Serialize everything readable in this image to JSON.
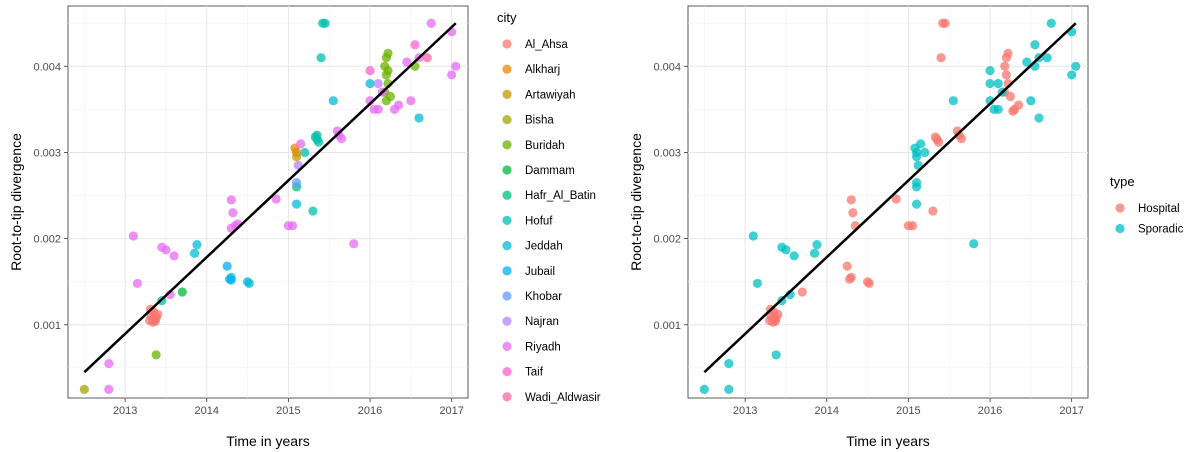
{
  "chart_data": [
    {
      "type": "scatter",
      "xlabel": "Time in years",
      "ylabel": "Root-to-tip divergence",
      "xlim": [
        2012.3,
        2017.2
      ],
      "ylim": [
        0.00015,
        0.0047
      ],
      "xticks": [
        2013,
        2014,
        2015,
        2016,
        2017
      ],
      "yticks": [
        0.001,
        0.002,
        0.003,
        0.004
      ],
      "ytick_labels": [
        "0.001",
        "0.002",
        "0.003",
        "0.004"
      ],
      "grid": true,
      "legend_title": "city",
      "legend_position": "right",
      "trend_line": {
        "x": [
          2012.5,
          2017.05
        ],
        "y": [
          0.00045,
          0.0045
        ],
        "color": "#000000"
      },
      "series": [
        {
          "name": "Al_Ahsa",
          "color": "#F8766D",
          "points": [
            [
              2013.3,
              0.00105
            ],
            [
              2013.32,
              0.0011
            ],
            [
              2013.35,
              0.00115
            ],
            [
              2013.38,
              0.00108
            ],
            [
              2013.34,
              0.00103
            ],
            [
              2013.4,
              0.00112
            ],
            [
              2013.36,
              0.00106
            ],
            [
              2013.31,
              0.00118
            ],
            [
              2013.37,
              0.00104
            ]
          ]
        },
        {
          "name": "Alkharj",
          "color": "#E58700",
          "points": [
            [
              2015.1,
              0.003
            ],
            [
              2015.08,
              0.00305
            ]
          ]
        },
        {
          "name": "Artawiyah",
          "color": "#C99800",
          "points": [
            [
              2015.1,
              0.00295
            ]
          ]
        },
        {
          "name": "Bisha",
          "color": "#A3A500",
          "points": [
            [
              2012.5,
              0.00025
            ]
          ]
        },
        {
          "name": "Buridah",
          "color": "#6BB100",
          "points": [
            [
              2013.38,
              0.00065
            ],
            [
              2016.2,
              0.0041
            ],
            [
              2016.22,
              0.00415
            ],
            [
              2016.18,
              0.004
            ],
            [
              2016.2,
              0.0039
            ],
            [
              2016.22,
              0.0038
            ],
            [
              2016.18,
              0.0037
            ],
            [
              2016.25,
              0.00365
            ],
            [
              2016.2,
              0.0036
            ],
            [
              2016.55,
              0.004
            ],
            [
              2016.22,
              0.00395
            ]
          ]
        },
        {
          "name": "Dammam",
          "color": "#00BA38",
          "points": [
            [
              2013.7,
              0.00138
            ]
          ]
        },
        {
          "name": "Hafr_Al_Batin",
          "color": "#00BF7D",
          "points": [
            [
              2015.1,
              0.0026
            ],
            [
              2015.35,
              0.0032
            ]
          ]
        },
        {
          "name": "Hofuf",
          "color": "#00C0AF",
          "points": [
            [
              2013.45,
              0.00128
            ],
            [
              2015.35,
              0.00315
            ],
            [
              2015.37,
              0.00312
            ],
            [
              2015.33,
              0.00318
            ],
            [
              2015.3,
              0.00232
            ],
            [
              2015.42,
              0.0045
            ],
            [
              2015.45,
              0.0045
            ],
            [
              2015.4,
              0.0041
            ],
            [
              2015.2,
              0.003
            ]
          ]
        },
        {
          "name": "Jeddah",
          "color": "#00BCD8",
          "points": [
            [
              2013.85,
              0.00183
            ],
            [
              2013.88,
              0.00193
            ],
            [
              2014.3,
              0.00155
            ],
            [
              2014.28,
              0.00153
            ],
            [
              2014.5,
              0.0015
            ],
            [
              2014.52,
              0.00148
            ],
            [
              2015.1,
              0.0024
            ],
            [
              2015.55,
              0.0036
            ],
            [
              2016.0,
              0.0038
            ],
            [
              2016.6,
              0.0034
            ]
          ]
        },
        {
          "name": "Jubail",
          "color": "#00B0F6",
          "points": [
            [
              2014.25,
              0.00168
            ],
            [
              2014.3,
              0.00152
            ]
          ]
        },
        {
          "name": "Khobar",
          "color": "#619CFF",
          "points": [
            [
              2015.1,
              0.00265
            ]
          ]
        },
        {
          "name": "Najran",
          "color": "#B983FF",
          "points": [
            [
              2015.12,
              0.00285
            ],
            [
              2016.1,
              0.0038
            ]
          ]
        },
        {
          "name": "Riyadh",
          "color": "#E76BF3",
          "points": [
            [
              2012.8,
              0.00055
            ],
            [
              2012.8,
              0.00025
            ],
            [
              2013.15,
              0.00148
            ],
            [
              2013.1,
              0.00203
            ],
            [
              2013.45,
              0.0019
            ],
            [
              2013.5,
              0.00187
            ],
            [
              2013.6,
              0.0018
            ],
            [
              2013.55,
              0.00135
            ],
            [
              2014.3,
              0.00245
            ],
            [
              2014.32,
              0.0023
            ],
            [
              2014.35,
              0.00215
            ],
            [
              2014.38,
              0.00217
            ],
            [
              2014.3,
              0.00212
            ],
            [
              2014.85,
              0.00246
            ],
            [
              2015.0,
              0.00215
            ],
            [
              2015.05,
              0.00215
            ],
            [
              2015.15,
              0.0031
            ],
            [
              2015.6,
              0.00325
            ],
            [
              2015.62,
              0.0032
            ],
            [
              2015.65,
              0.00316
            ],
            [
              2015.8,
              0.00194
            ],
            [
              2016.0,
              0.0036
            ],
            [
              2016.05,
              0.0035
            ],
            [
              2016.15,
              0.0037
            ],
            [
              2016.1,
              0.0035
            ],
            [
              2016.3,
              0.0035
            ],
            [
              2016.35,
              0.00355
            ],
            [
              2016.5,
              0.0036
            ],
            [
              2016.6,
              0.0041
            ],
            [
              2016.75,
              0.0045
            ],
            [
              2017.0,
              0.0044
            ],
            [
              2017.0,
              0.0039
            ],
            [
              2017.05,
              0.004
            ],
            [
              2016.45,
              0.00405
            ]
          ]
        },
        {
          "name": "Taif",
          "color": "#FD61D1",
          "points": [
            [
              2016.55,
              0.00425
            ],
            [
              2016.0,
              0.00395
            ]
          ]
        },
        {
          "name": "Wadi_Aldwasir",
          "color": "#FF67A4",
          "points": [
            [
              2016.7,
              0.0041
            ]
          ]
        }
      ]
    },
    {
      "type": "scatter",
      "xlabel": "Time in years",
      "ylabel": "Root-to-tip divergence",
      "xlim": [
        2012.3,
        2017.2
      ],
      "ylim": [
        0.00015,
        0.0047
      ],
      "xticks": [
        2013,
        2014,
        2015,
        2016,
        2017
      ],
      "yticks": [
        0.001,
        0.002,
        0.003,
        0.004
      ],
      "ytick_labels": [
        "0.001",
        "0.002",
        "0.003",
        "0.004"
      ],
      "grid": true,
      "legend_title": "type",
      "legend_position": "right",
      "trend_line": {
        "x": [
          2012.5,
          2017.05
        ],
        "y": [
          0.00045,
          0.0045
        ],
        "color": "#000000"
      },
      "series": [
        {
          "name": "Hospital",
          "color": "#F8766D",
          "points": [
            [
              2013.3,
              0.00105
            ],
            [
              2013.32,
              0.0011
            ],
            [
              2013.35,
              0.00115
            ],
            [
              2013.38,
              0.00108
            ],
            [
              2013.34,
              0.00103
            ],
            [
              2013.4,
              0.00112
            ],
            [
              2013.36,
              0.00106
            ],
            [
              2013.31,
              0.00118
            ],
            [
              2013.37,
              0.00104
            ],
            [
              2013.7,
              0.00138
            ],
            [
              2014.3,
              0.00245
            ],
            [
              2014.32,
              0.0023
            ],
            [
              2014.35,
              0.00215
            ],
            [
              2014.25,
              0.00168
            ],
            [
              2014.3,
              0.00155
            ],
            [
              2014.28,
              0.00153
            ],
            [
              2014.5,
              0.0015
            ],
            [
              2014.52,
              0.00148
            ],
            [
              2014.85,
              0.00246
            ],
            [
              2015.0,
              0.00215
            ],
            [
              2015.05,
              0.00215
            ],
            [
              2015.3,
              0.00232
            ],
            [
              2015.35,
              0.00315
            ],
            [
              2015.37,
              0.00312
            ],
            [
              2015.33,
              0.00318
            ],
            [
              2015.42,
              0.0045
            ],
            [
              2015.45,
              0.0045
            ],
            [
              2015.4,
              0.0041
            ],
            [
              2015.6,
              0.00325
            ],
            [
              2015.62,
              0.0032
            ],
            [
              2015.65,
              0.00316
            ],
            [
              2016.2,
              0.0041
            ],
            [
              2016.22,
              0.00415
            ],
            [
              2016.18,
              0.004
            ],
            [
              2016.2,
              0.0039
            ],
            [
              2016.22,
              0.0038
            ],
            [
              2016.18,
              0.0037
            ],
            [
              2016.25,
              0.00365
            ],
            [
              2016.3,
              0.0035
            ],
            [
              2016.35,
              0.00355
            ],
            [
              2016.28,
              0.00348
            ]
          ]
        },
        {
          "name": "Sporadic",
          "color": "#00BFC4",
          "points": [
            [
              2012.5,
              0.00025
            ],
            [
              2012.8,
              0.00055
            ],
            [
              2012.8,
              0.00025
            ],
            [
              2013.15,
              0.00148
            ],
            [
              2013.1,
              0.00203
            ],
            [
              2013.38,
              0.00065
            ],
            [
              2013.45,
              0.00128
            ],
            [
              2013.45,
              0.0019
            ],
            [
              2013.5,
              0.00187
            ],
            [
              2013.6,
              0.0018
            ],
            [
              2013.55,
              0.00135
            ],
            [
              2013.85,
              0.00183
            ],
            [
              2013.88,
              0.00193
            ],
            [
              2015.1,
              0.0024
            ],
            [
              2015.1,
              0.0026
            ],
            [
              2015.1,
              0.00265
            ],
            [
              2015.12,
              0.00285
            ],
            [
              2015.1,
              0.003
            ],
            [
              2015.08,
              0.00305
            ],
            [
              2015.1,
              0.00295
            ],
            [
              2015.15,
              0.0031
            ],
            [
              2015.2,
              0.003
            ],
            [
              2015.55,
              0.0036
            ],
            [
              2015.8,
              0.00194
            ],
            [
              2016.0,
              0.0038
            ],
            [
              2016.0,
              0.0036
            ],
            [
              2016.05,
              0.0035
            ],
            [
              2016.1,
              0.0038
            ],
            [
              2016.15,
              0.0037
            ],
            [
              2016.1,
              0.0035
            ],
            [
              2016.0,
              0.00395
            ],
            [
              2016.45,
              0.00405
            ],
            [
              2016.5,
              0.0036
            ],
            [
              2016.55,
              0.00425
            ],
            [
              2016.55,
              0.004
            ],
            [
              2016.6,
              0.0041
            ],
            [
              2016.6,
              0.0034
            ],
            [
              2016.7,
              0.0041
            ],
            [
              2016.75,
              0.0045
            ],
            [
              2017.0,
              0.0044
            ],
            [
              2017.0,
              0.0039
            ],
            [
              2017.05,
              0.004
            ]
          ]
        }
      ]
    }
  ]
}
